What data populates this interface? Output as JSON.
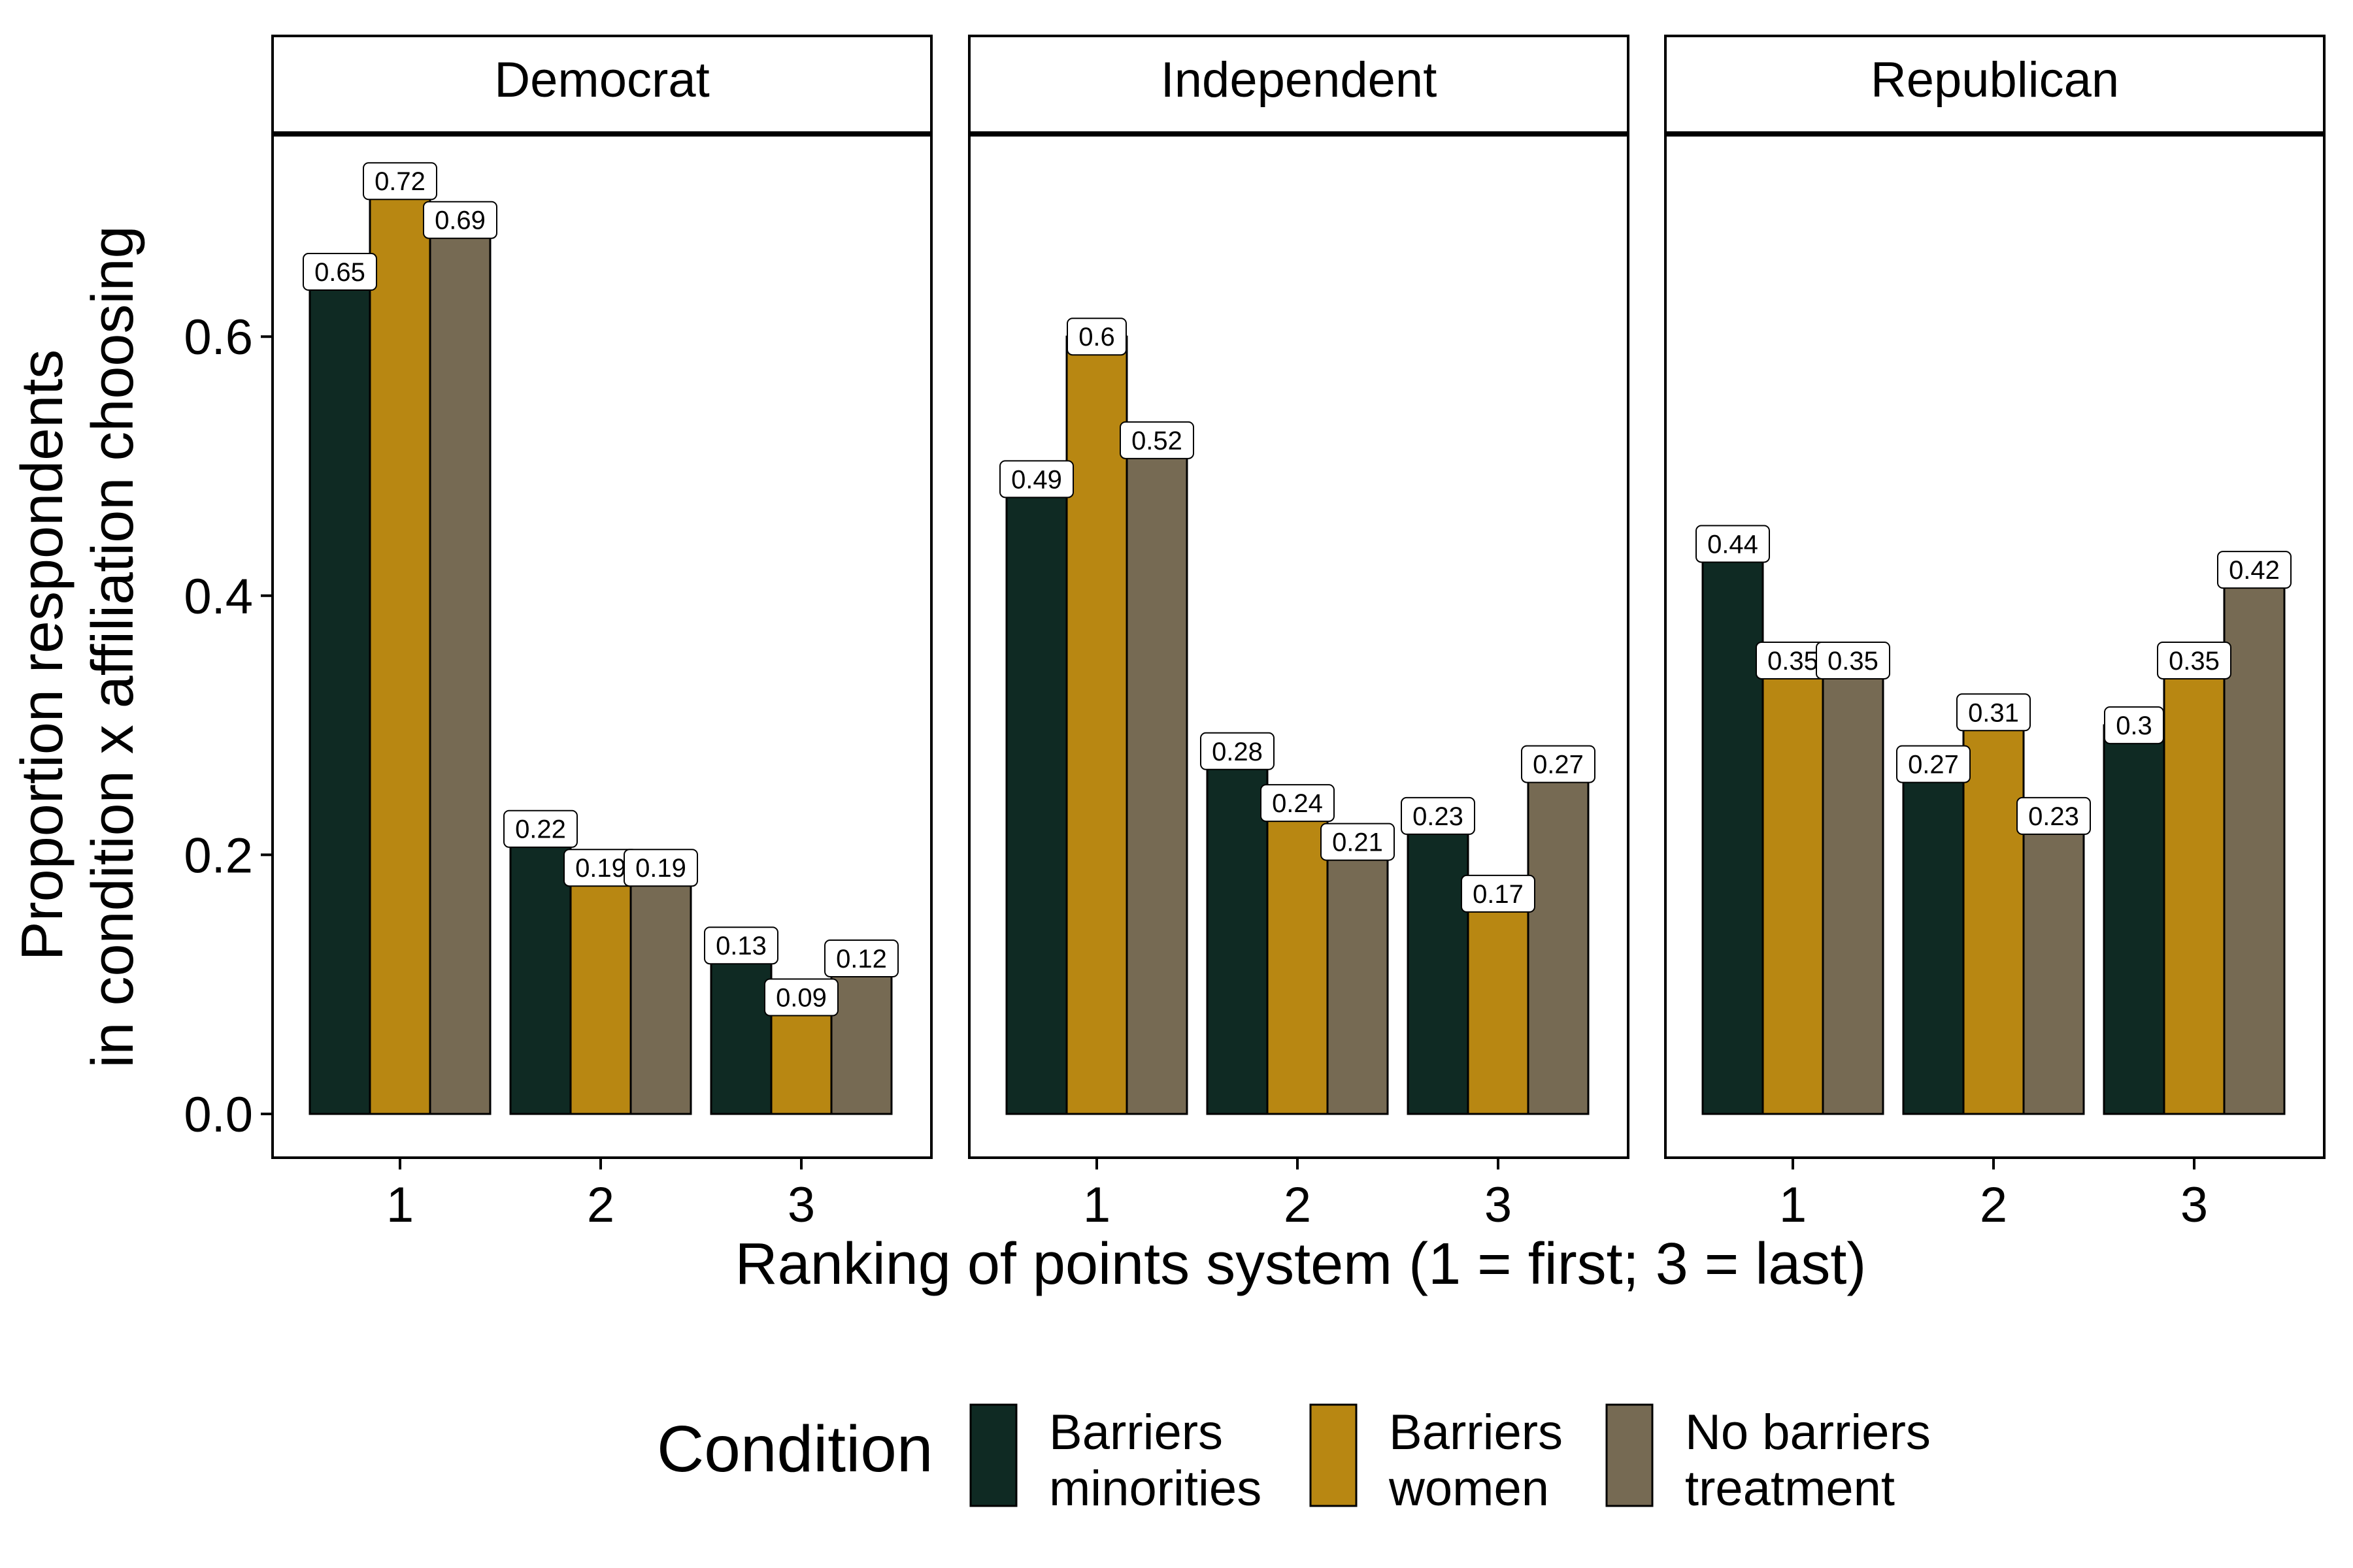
{
  "chart_data": {
    "type": "bar",
    "facets": [
      "Democrat",
      "Independent",
      "Republican"
    ],
    "categories": [
      "1",
      "2",
      "3"
    ],
    "xlabel": "Ranking of points system (1 = first; 3 = last)",
    "ylabel_lines": [
      "Proportion respondents",
      "in condition x affiliation choosing"
    ],
    "ylim": [
      0,
      0.75
    ],
    "yticks": [
      0.0,
      0.2,
      0.4,
      0.6
    ],
    "ytick_labels": [
      "0.0",
      "0.2",
      "0.4",
      "0.6"
    ],
    "legend": {
      "title": "Condition",
      "position": "bottom"
    },
    "series": [
      {
        "key": "barriers_minorities",
        "label_lines": [
          "Barriers",
          "minorities"
        ],
        "color": "#0f2a23",
        "values": {
          "Democrat": [
            0.65,
            0.22,
            0.13
          ],
          "Independent": [
            0.49,
            0.28,
            0.23
          ],
          "Republican": [
            0.44,
            0.27,
            0.3
          ]
        },
        "labels": {
          "Democrat": [
            "0.65",
            "0.22",
            "0.13"
          ],
          "Independent": [
            "0.49",
            "0.28",
            "0.23"
          ],
          "Republican": [
            "0.44",
            "0.27",
            "0.3"
          ]
        }
      },
      {
        "key": "barriers_women",
        "label_lines": [
          "Barriers",
          "women"
        ],
        "color": "#b88712",
        "values": {
          "Democrat": [
            0.72,
            0.19,
            0.09
          ],
          "Independent": [
            0.6,
            0.24,
            0.17
          ],
          "Republican": [
            0.35,
            0.31,
            0.35
          ]
        },
        "labels": {
          "Democrat": [
            "0.72",
            "0.19",
            "0.09"
          ],
          "Independent": [
            "0.6",
            "0.24",
            "0.17"
          ],
          "Republican": [
            "0.35",
            "0.31",
            "0.35"
          ]
        }
      },
      {
        "key": "no_barriers_treatment",
        "label_lines": [
          "No barriers",
          "treatment"
        ],
        "color": "#766a53",
        "values": {
          "Democrat": [
            0.69,
            0.19,
            0.12
          ],
          "Independent": [
            0.52,
            0.21,
            0.27
          ],
          "Republican": [
            0.35,
            0.23,
            0.42
          ]
        },
        "labels": {
          "Democrat": [
            "0.69",
            "0.19",
            "0.12"
          ],
          "Independent": [
            "0.52",
            "0.21",
            "0.27"
          ],
          "Republican": [
            "0.35",
            "0.23",
            "0.42"
          ]
        }
      }
    ]
  }
}
